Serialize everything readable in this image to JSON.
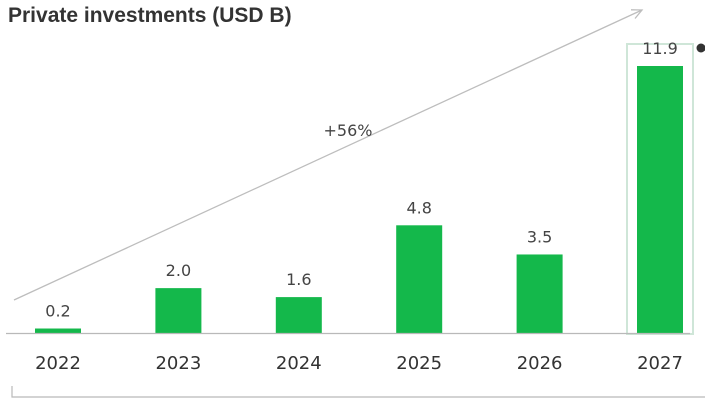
{
  "chart_data": {
    "type": "bar",
    "title": "Private investments (USD B)",
    "categories": [
      "2022",
      "2023",
      "2024",
      "2025",
      "2026",
      "2027"
    ],
    "values": [
      0.2,
      2.0,
      1.6,
      4.8,
      3.5,
      11.9
    ],
    "value_labels": [
      "0.2",
      "2.0",
      "1.6",
      "4.8",
      "3.5",
      "11.9"
    ],
    "growth_annotation": "+56%",
    "highlighted_category": "2027",
    "ylim": [
      0,
      11.9
    ],
    "grid": false,
    "legend": "none",
    "xlabel": "",
    "ylabel": ""
  },
  "colors": {
    "bar": "#14b84b",
    "highlight_border": "#cfe6d8",
    "baseline": "#b9b9b9",
    "arrow": "#bdbdbd",
    "marker": "#333333"
  }
}
